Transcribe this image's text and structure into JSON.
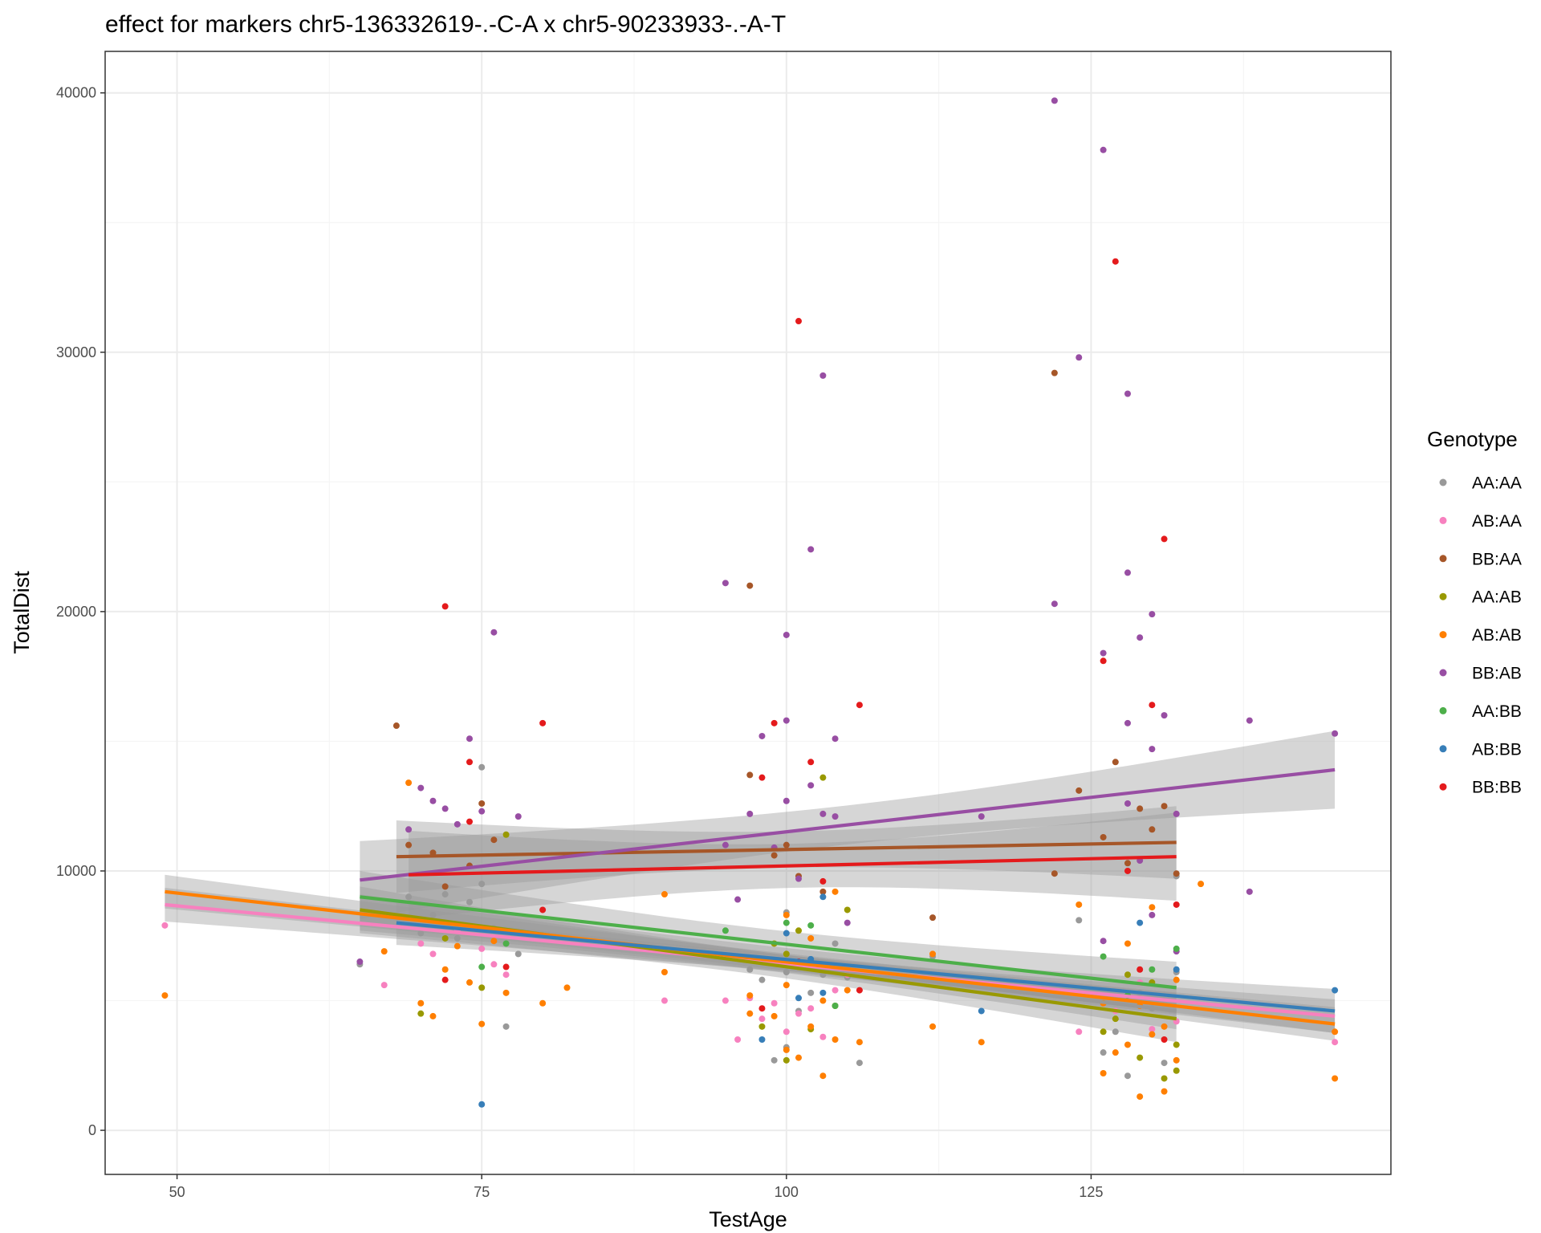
{
  "chart_data": {
    "type": "scatter",
    "title": "effect for markers chr5-136332619-.-C-A x chr5-90233933-.-A-T",
    "xlabel": "TestAge",
    "ylabel": "TotalDist",
    "xlim": [
      44.1,
      149.6
    ],
    "ylim": [
      -1700,
      41600
    ],
    "x_ticks": [
      50,
      75,
      100,
      125
    ],
    "x_tick_labels": [
      "50",
      "75",
      "100",
      "125"
    ],
    "y_ticks": [
      0,
      10000,
      20000,
      30000,
      40000
    ],
    "y_tick_labels": [
      "0",
      "10000",
      "20000",
      "30000",
      "40000"
    ],
    "grid": true,
    "legend": {
      "title": "Genotype",
      "position": "right"
    },
    "series": [
      {
        "name": "AA:AA",
        "color": "#999999",
        "points": [
          [
            65,
            6400
          ],
          [
            69,
            9000
          ],
          [
            70,
            7600
          ],
          [
            71,
            8300
          ],
          [
            72,
            9100
          ],
          [
            73,
            7400
          ],
          [
            74,
            8800
          ],
          [
            75,
            14000
          ],
          [
            75,
            9500
          ],
          [
            76,
            7800
          ],
          [
            77,
            4000
          ],
          [
            78,
            6800
          ],
          [
            97,
            6200
          ],
          [
            98,
            5800
          ],
          [
            99,
            2700
          ],
          [
            100,
            3200
          ],
          [
            100,
            6100
          ],
          [
            100,
            8400
          ],
          [
            101,
            4600
          ],
          [
            102,
            5300
          ],
          [
            103,
            6000
          ],
          [
            104,
            7200
          ],
          [
            105,
            5900
          ],
          [
            106,
            2600
          ],
          [
            112,
            6700
          ],
          [
            124,
            8100
          ],
          [
            126,
            3000
          ],
          [
            127,
            3800
          ],
          [
            128,
            2100
          ],
          [
            129,
            5300
          ],
          [
            130,
            4700
          ],
          [
            131,
            2600
          ],
          [
            132,
            9800
          ],
          [
            132,
            6100
          ]
        ],
        "fit": {
          "x": [
            65,
            132
          ],
          "y": [
            8400,
            4600
          ],
          "ci": 700
        }
      },
      {
        "name": "AB:AA",
        "color": "#F781BF",
        "points": [
          [
            49,
            7900
          ],
          [
            67,
            5600
          ],
          [
            70,
            7200
          ],
          [
            71,
            6800
          ],
          [
            73,
            7700
          ],
          [
            75,
            7000
          ],
          [
            76,
            6400
          ],
          [
            77,
            6000
          ],
          [
            90,
            5000
          ],
          [
            95,
            5000
          ],
          [
            96,
            3500
          ],
          [
            97,
            5100
          ],
          [
            98,
            4300
          ],
          [
            99,
            4900
          ],
          [
            100,
            3800
          ],
          [
            101,
            4500
          ],
          [
            102,
            4700
          ],
          [
            103,
            3600
          ],
          [
            104,
            5400
          ],
          [
            105,
            6000
          ],
          [
            124,
            3800
          ],
          [
            127,
            4600
          ],
          [
            129,
            5700
          ],
          [
            130,
            3900
          ],
          [
            132,
            4200
          ],
          [
            145,
            3400
          ]
        ],
        "fit": {
          "x": [
            49,
            145
          ],
          "y": [
            8700,
            4400
          ],
          "ci": 650
        }
      },
      {
        "name": "BB:AA",
        "color": "#A65628",
        "points": [
          [
            68,
            15600
          ],
          [
            69,
            11000
          ],
          [
            71,
            10700
          ],
          [
            72,
            9400
          ],
          [
            74,
            10200
          ],
          [
            75,
            12600
          ],
          [
            76,
            11200
          ],
          [
            97,
            21000
          ],
          [
            97,
            13700
          ],
          [
            99,
            10600
          ],
          [
            100,
            11000
          ],
          [
            101,
            9800
          ],
          [
            103,
            9200
          ],
          [
            112,
            8200
          ],
          [
            122,
            29200
          ],
          [
            122,
            9900
          ],
          [
            124,
            13100
          ],
          [
            126,
            11300
          ],
          [
            127,
            14200
          ],
          [
            128,
            10300
          ],
          [
            129,
            12400
          ],
          [
            130,
            11600
          ],
          [
            131,
            12500
          ],
          [
            132,
            9900
          ]
        ],
        "fit": {
          "x": [
            68,
            132
          ],
          "y": [
            10550,
            11100
          ],
          "ci": 1400
        }
      },
      {
        "name": "AA:AB",
        "color": "#999900",
        "points": [
          [
            70,
            4500
          ],
          [
            72,
            7400
          ],
          [
            75,
            5500
          ],
          [
            77,
            11400
          ],
          [
            98,
            4000
          ],
          [
            99,
            7200
          ],
          [
            100,
            2700
          ],
          [
            100,
            6800
          ],
          [
            101,
            7700
          ],
          [
            102,
            3900
          ],
          [
            103,
            13600
          ],
          [
            104,
            4800
          ],
          [
            105,
            8500
          ],
          [
            126,
            3800
          ],
          [
            127,
            4300
          ],
          [
            128,
            6000
          ],
          [
            129,
            2800
          ],
          [
            130,
            5700
          ],
          [
            131,
            2000
          ],
          [
            132,
            3300
          ],
          [
            132,
            2300
          ]
        ],
        "fit": {
          "x": [
            65,
            132
          ],
          "y": [
            8500,
            4300
          ],
          "ci": 900
        }
      },
      {
        "name": "AB:AB",
        "color": "#FF7F00",
        "points": [
          [
            49,
            5200
          ],
          [
            67,
            6900
          ],
          [
            69,
            13400
          ],
          [
            70,
            4900
          ],
          [
            71,
            4400
          ],
          [
            72,
            6200
          ],
          [
            73,
            7100
          ],
          [
            74,
            5700
          ],
          [
            75,
            4100
          ],
          [
            76,
            7300
          ],
          [
            77,
            5300
          ],
          [
            80,
            4900
          ],
          [
            82,
            5500
          ],
          [
            90,
            9100
          ],
          [
            90,
            6100
          ],
          [
            97,
            5200
          ],
          [
            97,
            4500
          ],
          [
            98,
            6600
          ],
          [
            99,
            4400
          ],
          [
            100,
            3100
          ],
          [
            100,
            5600
          ],
          [
            100,
            8300
          ],
          [
            101,
            2800
          ],
          [
            101,
            6300
          ],
          [
            102,
            4000
          ],
          [
            102,
            7400
          ],
          [
            103,
            2100
          ],
          [
            103,
            5000
          ],
          [
            104,
            3500
          ],
          [
            104,
            9200
          ],
          [
            105,
            5400
          ],
          [
            106,
            3400
          ],
          [
            112,
            4000
          ],
          [
            112,
            6800
          ],
          [
            116,
            3400
          ],
          [
            124,
            8700
          ],
          [
            126,
            2200
          ],
          [
            126,
            4900
          ],
          [
            127,
            3000
          ],
          [
            128,
            3300
          ],
          [
            128,
            7200
          ],
          [
            129,
            1300
          ],
          [
            129,
            4800
          ],
          [
            130,
            3700
          ],
          [
            130,
            8600
          ],
          [
            131,
            1500
          ],
          [
            131,
            4000
          ],
          [
            132,
            2700
          ],
          [
            132,
            5800
          ],
          [
            134,
            9500
          ],
          [
            145,
            3800
          ],
          [
            145,
            2000
          ]
        ],
        "fit": {
          "x": [
            49,
            145
          ],
          "y": [
            9200,
            4100
          ],
          "ci": 650
        }
      },
      {
        "name": "BB:AB",
        "color": "#984EA3",
        "points": [
          [
            65,
            6500
          ],
          [
            69,
            11600
          ],
          [
            70,
            13200
          ],
          [
            71,
            12700
          ],
          [
            72,
            12400
          ],
          [
            73,
            11800
          ],
          [
            74,
            15100
          ],
          [
            75,
            12300
          ],
          [
            76,
            19200
          ],
          [
            78,
            12100
          ],
          [
            95,
            21100
          ],
          [
            95,
            11000
          ],
          [
            96,
            8900
          ],
          [
            97,
            12200
          ],
          [
            98,
            15200
          ],
          [
            99,
            10900
          ],
          [
            100,
            19100
          ],
          [
            100,
            15800
          ],
          [
            100,
            12700
          ],
          [
            101,
            9700
          ],
          [
            102,
            22400
          ],
          [
            102,
            13300
          ],
          [
            103,
            29100
          ],
          [
            103,
            12200
          ],
          [
            104,
            15100
          ],
          [
            104,
            12100
          ],
          [
            105,
            8000
          ],
          [
            116,
            12100
          ],
          [
            122,
            39700
          ],
          [
            122,
            20300
          ],
          [
            124,
            29800
          ],
          [
            126,
            37800
          ],
          [
            126,
            18400
          ],
          [
            126,
            7300
          ],
          [
            128,
            28400
          ],
          [
            128,
            21500
          ],
          [
            128,
            15700
          ],
          [
            128,
            12600
          ],
          [
            129,
            19000
          ],
          [
            129,
            10400
          ],
          [
            130,
            19900
          ],
          [
            130,
            14700
          ],
          [
            130,
            8300
          ],
          [
            131,
            16000
          ],
          [
            132,
            12200
          ],
          [
            132,
            6900
          ],
          [
            138,
            15800
          ],
          [
            138,
            9200
          ],
          [
            145,
            15300
          ]
        ],
        "fit": {
          "x": [
            65,
            145
          ],
          "y": [
            9650,
            13900
          ],
          "ci": 1500
        }
      },
      {
        "name": "AA:BB",
        "color": "#4DAF4A",
        "points": [
          [
            75,
            6300
          ],
          [
            77,
            7200
          ],
          [
            95,
            7700
          ],
          [
            100,
            8000
          ],
          [
            102,
            7900
          ],
          [
            104,
            4800
          ],
          [
            126,
            6700
          ],
          [
            128,
            5200
          ],
          [
            130,
            6200
          ],
          [
            132,
            7000
          ]
        ],
        "fit": {
          "x": [
            65,
            132
          ],
          "y": [
            9000,
            5500
          ],
          "ci": 1000
        }
      },
      {
        "name": "AB:BB",
        "color": "#377EB8",
        "points": [
          [
            75,
            1000
          ],
          [
            98,
            3500
          ],
          [
            100,
            7600
          ],
          [
            101,
            5100
          ],
          [
            102,
            6600
          ],
          [
            103,
            5300
          ],
          [
            103,
            9000
          ],
          [
            116,
            4600
          ],
          [
            129,
            8000
          ],
          [
            132,
            6200
          ],
          [
            145,
            5400
          ]
        ],
        "fit": {
          "x": [
            68,
            145
          ],
          "y": [
            8000,
            4600
          ],
          "ci": 850
        }
      },
      {
        "name": "BB:BB",
        "color": "#E41A1C",
        "points": [
          [
            72,
            20200
          ],
          [
            72,
            5800
          ],
          [
            74,
            11900
          ],
          [
            74,
            14200
          ],
          [
            77,
            6300
          ],
          [
            80,
            15700
          ],
          [
            80,
            8500
          ],
          [
            98,
            13600
          ],
          [
            98,
            4700
          ],
          [
            99,
            15700
          ],
          [
            101,
            31200
          ],
          [
            101,
            6500
          ],
          [
            102,
            14200
          ],
          [
            103,
            9600
          ],
          [
            106,
            16400
          ],
          [
            106,
            5400
          ],
          [
            126,
            18100
          ],
          [
            127,
            33500
          ],
          [
            128,
            10000
          ],
          [
            129,
            6200
          ],
          [
            130,
            16400
          ],
          [
            131,
            22800
          ],
          [
            131,
            3500
          ],
          [
            132,
            8700
          ]
        ],
        "fit": {
          "x": [
            69,
            132
          ],
          "y": [
            9850,
            10550
          ],
          "ci": 1700
        }
      }
    ]
  }
}
